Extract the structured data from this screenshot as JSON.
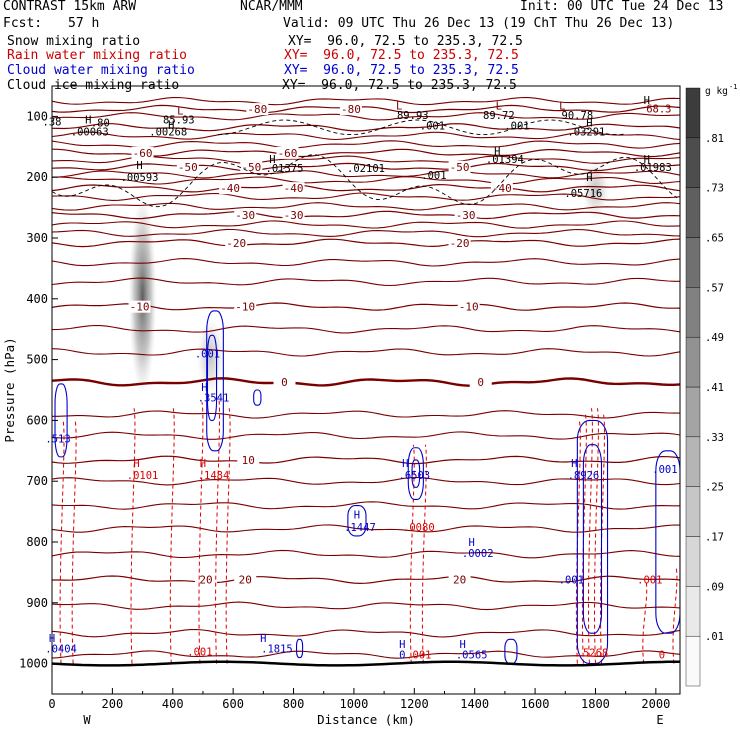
{
  "header": {
    "model": "CONTRAST 15km ARW",
    "org": "NCAR/MMM",
    "init": "Init: 00 UTC Tue 24 Dec 13",
    "fcst_label": "Fcst:",
    "fcst_value": "57 h",
    "valid": "Valid: 09 UTC Thu 26 Dec 13 (19 ChT Thu 26 Dec 13)"
  },
  "fields": [
    {
      "label": "Snow mixing ratio",
      "xy": "XY=  96.0, 72.5 to 235.3, 72.5",
      "color": "#000000"
    },
    {
      "label": "Rain water mixing ratio",
      "xy": "XY=  96.0, 72.5 to 235.3, 72.5",
      "color": "#cc0000"
    },
    {
      "label": "Cloud water mixing ratio",
      "xy": "XY=  96.0, 72.5 to 235.3, 72.5",
      "color": "#0000cc"
    },
    {
      "label": "Cloud ice mixing ratio",
      "xy": "XY=  96.0, 72.5 to 235.3, 72.5",
      "color": "#000000"
    }
  ],
  "colors": {
    "temp": "#7a0000",
    "rain": "#dd0000",
    "cloud_water": "#0000cc",
    "ice": "#000000",
    "axis": "#000000"
  },
  "chart_data": {
    "type": "heatmap",
    "xlabel": "Distance (km)",
    "ylabel": "Pressure (hPa)",
    "xlim": [
      0,
      2080
    ],
    "ylim": [
      50,
      1050
    ],
    "xticks": [
      0,
      200,
      400,
      600,
      800,
      1000,
      1200,
      1400,
      1600,
      1800,
      2000
    ],
    "yticks": [
      100,
      200,
      300,
      400,
      500,
      600,
      700,
      800,
      900,
      1000
    ],
    "west_label": "W",
    "east_label": "E",
    "colorbar": {
      "unit": "g kg",
      "unit_exp": "-1",
      "labels": [
        ".01",
        ".09",
        ".17",
        ".25",
        ".33",
        ".41",
        ".49",
        ".57",
        ".65",
        ".73",
        ".81"
      ]
    },
    "snow_shading": [
      {
        "x": 300,
        "p_top": 230,
        "p_bottom": 560,
        "peak": 0.8
      },
      {
        "x": 525,
        "p_top": 430,
        "p_bottom": 560,
        "peak": 0.3
      },
      {
        "x": 1800,
        "p_top": 170,
        "p_bottom": 270,
        "peak": 0.3
      }
    ],
    "temperature_contours": [
      {
        "level": -80,
        "p": 88,
        "labels": [
          {
            "x": 680,
            "text": "-80"
          },
          {
            "x": 990,
            "text": "-80"
          }
        ]
      },
      {
        "level": -70,
        "p": 118
      },
      {
        "level": -60,
        "p": 160,
        "labels": [
          {
            "x": 300,
            "text": "-60"
          },
          {
            "x": 780,
            "text": "-60"
          }
        ]
      },
      {
        "level": -50,
        "p": 183,
        "labels": [
          {
            "x": 450,
            "text": "-50"
          },
          {
            "x": 660,
            "text": "-50"
          },
          {
            "x": 1350,
            "text": "-50"
          }
        ]
      },
      {
        "level": -40,
        "p": 218,
        "labels": [
          {
            "x": 590,
            "text": "-40"
          },
          {
            "x": 800,
            "text": "-40"
          },
          {
            "x": 1490,
            "text": "-40"
          }
        ]
      },
      {
        "level": -30,
        "p": 262,
        "labels": [
          {
            "x": 640,
            "text": "-30"
          },
          {
            "x": 800,
            "text": "-30"
          },
          {
            "x": 1370,
            "text": "-30"
          }
        ]
      },
      {
        "level": -20,
        "p": 308,
        "labels": [
          {
            "x": 610,
            "text": "-20"
          },
          {
            "x": 1350,
            "text": "-20"
          }
        ]
      },
      {
        "level": -10,
        "p": 413,
        "labels": [
          {
            "x": 290,
            "text": "-10"
          },
          {
            "x": 640,
            "text": "-10"
          },
          {
            "x": 1380,
            "text": "-10"
          }
        ]
      },
      {
        "level": 0,
        "p": 537,
        "labels": [
          {
            "x": 770,
            "text": "0"
          },
          {
            "x": 1420,
            "text": "0"
          }
        ]
      },
      {
        "level": 10,
        "p": 665,
        "labels": [
          {
            "x": 650,
            "text": "10"
          }
        ]
      },
      {
        "level": 20,
        "p": 862,
        "labels": [
          {
            "x": 510,
            "text": "20"
          },
          {
            "x": 640,
            "text": "20"
          },
          {
            "x": 1350,
            "text": "20"
          }
        ]
      }
    ],
    "extra_isotherm_pressures": [
      75,
      100,
      132,
      146,
      171,
      195,
      205,
      232,
      248,
      278,
      292,
      340,
      372,
      450,
      488,
      590,
      625,
      700,
      740,
      778,
      820,
      905,
      950,
      985
    ],
    "annotations": [
      {
        "x": 0,
        "p": 108,
        "text": ".38",
        "color": "ice"
      },
      {
        "x": 120,
        "p": 105,
        "text": "H",
        "color": "ice"
      },
      {
        "x": 160,
        "p": 110,
        "text": ".80",
        "color": "ice"
      },
      {
        "x": 125,
        "p": 125,
        "text": ".00063",
        "color": "ice"
      },
      {
        "x": 425,
        "p": 90,
        "text": "L",
        "color": "temp"
      },
      {
        "x": 420,
        "p": 105,
        "text": "85.93",
        "color": "ice"
      },
      {
        "x": 395,
        "p": 113,
        "text": "H",
        "color": "ice"
      },
      {
        "x": 385,
        "p": 125,
        "text": ".00268",
        "color": "ice"
      },
      {
        "x": 1150,
        "p": 82,
        "text": "L",
        "color": "temp"
      },
      {
        "x": 1195,
        "p": 98,
        "text": "89.93",
        "color": "ice"
      },
      {
        "x": 1260,
        "p": 115,
        "text": ".001",
        "color": "ice"
      },
      {
        "x": 1480,
        "p": 82,
        "text": "L",
        "color": "temp"
      },
      {
        "x": 1480,
        "p": 98,
        "text": "89.72",
        "color": "ice"
      },
      {
        "x": 1540,
        "p": 115,
        "text": ".001",
        "color": "ice"
      },
      {
        "x": 1690,
        "p": 82,
        "text": "L",
        "color": "temp"
      },
      {
        "x": 1740,
        "p": 98,
        "text": "90.78",
        "color": "ice"
      },
      {
        "x": 1780,
        "p": 110,
        "text": "H",
        "color": "ice"
      },
      {
        "x": 1770,
        "p": 125,
        "text": ".03291",
        "color": "ice"
      },
      {
        "x": 1970,
        "p": 73,
        "text": "H",
        "color": "ice"
      },
      {
        "x": 2010,
        "p": 87,
        "text": "68.3",
        "color": "temp"
      },
      {
        "x": 1970,
        "p": 170,
        "text": "H",
        "color": "ice"
      },
      {
        "x": 1990,
        "p": 183,
        "text": ".01983",
        "color": "ice"
      },
      {
        "x": 290,
        "p": 180,
        "text": "H",
        "color": "ice"
      },
      {
        "x": 290,
        "p": 200,
        "text": ".00593",
        "color": "ice"
      },
      {
        "x": 730,
        "p": 170,
        "text": "H",
        "color": "ice"
      },
      {
        "x": 770,
        "p": 185,
        "text": ".01375",
        "color": "ice"
      },
      {
        "x": 1040,
        "p": 185,
        "text": ".02101",
        "color": "ice"
      },
      {
        "x": 1265,
        "p": 196,
        "text": ".001",
        "color": "ice"
      },
      {
        "x": 1475,
        "p": 157,
        "text": "H",
        "color": "ice"
      },
      {
        "x": 1500,
        "p": 170,
        "text": ".01394",
        "color": "ice"
      },
      {
        "x": 1780,
        "p": 200,
        "text": "H",
        "color": "ice"
      },
      {
        "x": 1760,
        "p": 226,
        "text": ".05716",
        "color": "ice"
      },
      {
        "x": 515,
        "p": 490,
        "text": ".001",
        "color": "cloud_water"
      },
      {
        "x": 505,
        "p": 545,
        "text": "H",
        "color": "cloud_water"
      },
      {
        "x": 535,
        "p": 562,
        "text": ".3541",
        "color": "cloud_water"
      },
      {
        "x": 20,
        "p": 630,
        "text": ".513",
        "color": "cloud_water"
      },
      {
        "x": 280,
        "p": 670,
        "text": "H",
        "color": "rain"
      },
      {
        "x": 300,
        "p": 690,
        "text": ".0101",
        "color": "rain"
      },
      {
        "x": 500,
        "p": 670,
        "text": "H",
        "color": "rain"
      },
      {
        "x": 535,
        "p": 690,
        "text": ".1484",
        "color": "rain"
      },
      {
        "x": 1170,
        "p": 670,
        "text": "H",
        "color": "cloud_water"
      },
      {
        "x": 1200,
        "p": 690,
        "text": ".6503",
        "color": "cloud_water"
      },
      {
        "x": 1010,
        "p": 755,
        "text": "H",
        "color": "cloud_water"
      },
      {
        "x": 1020,
        "p": 775,
        "text": ".1447",
        "color": "cloud_water"
      },
      {
        "x": 1215,
        "p": 775,
        "text": ".0080",
        "color": "rain"
      },
      {
        "x": 1390,
        "p": 800,
        "text": "H",
        "color": "cloud_water"
      },
      {
        "x": 1410,
        "p": 818,
        "text": ".0002",
        "color": "cloud_water"
      },
      {
        "x": 1730,
        "p": 670,
        "text": "H",
        "color": "cloud_water"
      },
      {
        "x": 1760,
        "p": 690,
        "text": ".8926",
        "color": "cloud_water"
      },
      {
        "x": 1720,
        "p": 862,
        "text": ".001",
        "color": "cloud_water"
      },
      {
        "x": 1980,
        "p": 862,
        "text": ".001",
        "color": "rain"
      },
      {
        "x": 2030,
        "p": 680,
        "text": ".001",
        "color": "cloud_water"
      },
      {
        "x": 490,
        "p": 980,
        "text": ".001",
        "color": "rain"
      },
      {
        "x": 0,
        "p": 958,
        "text": "H",
        "color": "cloud_water"
      },
      {
        "x": 30,
        "p": 975,
        "text": ".0404",
        "color": "cloud_water"
      },
      {
        "x": 700,
        "p": 958,
        "text": "H",
        "color": "cloud_water"
      },
      {
        "x": 745,
        "p": 975,
        "text": ".1815",
        "color": "cloud_water"
      },
      {
        "x": 1160,
        "p": 968,
        "text": "H",
        "color": "cloud_water"
      },
      {
        "x": 1160,
        "p": 985,
        "text": "0",
        "color": "cloud_water"
      },
      {
        "x": 1215,
        "p": 985,
        "text": ".001",
        "color": "rain"
      },
      {
        "x": 1360,
        "p": 968,
        "text": "H",
        "color": "cloud_water"
      },
      {
        "x": 1390,
        "p": 985,
        "text": ".0565",
        "color": "cloud_water"
      },
      {
        "x": 1790,
        "p": 982,
        "text": ".5268",
        "color": "rain"
      },
      {
        "x": 2020,
        "p": 985,
        "text": "0",
        "color": "rain"
      }
    ],
    "rain_contours": [
      {
        "x": 30,
        "p_top": 600,
        "p_bottom": 1000
      },
      {
        "x": 70,
        "p_top": 600,
        "p_bottom": 1000
      },
      {
        "x": 265,
        "p_top": 580,
        "p_bottom": 1000
      },
      {
        "x": 395,
        "p_top": 580,
        "p_bottom": 1000
      },
      {
        "x": 490,
        "p_top": 570,
        "p_bottom": 1000
      },
      {
        "x": 545,
        "p_top": 560,
        "p_bottom": 1000
      },
      {
        "x": 580,
        "p_top": 580,
        "p_bottom": 1000
      },
      {
        "x": 1190,
        "p_top": 640,
        "p_bottom": 1000
      },
      {
        "x": 1230,
        "p_top": 640,
        "p_bottom": 1000
      },
      {
        "x": 1740,
        "p_top": 600,
        "p_bottom": 1000
      },
      {
        "x": 1760,
        "p_top": 590,
        "p_bottom": 1000
      },
      {
        "x": 1780,
        "p_top": 580,
        "p_bottom": 1000
      },
      {
        "x": 1800,
        "p_top": 580,
        "p_bottom": 1000
      },
      {
        "x": 1820,
        "p_top": 590,
        "p_bottom": 1000
      },
      {
        "x": 1960,
        "p_top": 860,
        "p_bottom": 1000
      },
      {
        "x": 2060,
        "p_top": 840,
        "p_bottom": 1000
      }
    ],
    "cloud_water_contours": [
      {
        "x": 540,
        "p_top": 420,
        "p_bottom": 650,
        "w": 55
      },
      {
        "x": 530,
        "p_top": 460,
        "p_bottom": 600,
        "w": 30
      },
      {
        "x": 30,
        "p_top": 540,
        "p_bottom": 660,
        "w": 40
      },
      {
        "x": 1205,
        "p_top": 645,
        "p_bottom": 730,
        "w": 50
      },
      {
        "x": 1205,
        "p_top": 665,
        "p_bottom": 710,
        "w": 25
      },
      {
        "x": 1010,
        "p_top": 740,
        "p_bottom": 790,
        "w": 60
      },
      {
        "x": 1790,
        "p_top": 600,
        "p_bottom": 1000,
        "w": 100
      },
      {
        "x": 1790,
        "p_top": 640,
        "p_bottom": 950,
        "w": 60
      },
      {
        "x": 2040,
        "p_top": 650,
        "p_bottom": 950,
        "w": 80
      },
      {
        "x": 1520,
        "p_top": 960,
        "p_bottom": 1000,
        "w": 40
      },
      {
        "x": 820,
        "p_top": 960,
        "p_bottom": 990,
        "w": 20
      },
      {
        "x": 680,
        "p_top": 550,
        "p_bottom": 575,
        "w": 24
      }
    ]
  }
}
